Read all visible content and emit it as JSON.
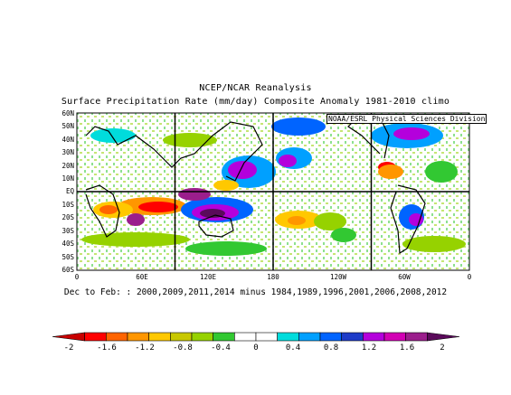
{
  "titles": {
    "line1": "NCEP/NCAR Reanalysis",
    "line2": "Surface Precipitation Rate (mm/day) Composite Anomaly 1981-2010 climo"
  },
  "credit": "NOAA/ESRL Physical Sciences Division",
  "footer": "Dec to Feb: : 2000,2009,2011,2014 minus 1984,1989,1996,2001,2006,2008,2012",
  "y_axis": [
    "60N",
    "50N",
    "40N",
    "30N",
    "20N",
    "10N",
    "EQ",
    "10S",
    "20S",
    "30S",
    "40S",
    "50S",
    "60S"
  ],
  "x_axis": [
    "0",
    "60E",
    "120E",
    "180",
    "120W",
    "60W",
    "0"
  ],
  "colorbar": {
    "labels": [
      "-2",
      "-1.6",
      "-1.2",
      "-0.8",
      "-0.4",
      "0",
      "0.4",
      "0.8",
      "1.2",
      "1.6",
      "2"
    ],
    "colors": [
      "#c80000",
      "#ff0000",
      "#ff6400",
      "#ff9600",
      "#ffc800",
      "#c8c800",
      "#96d200",
      "#32c832",
      "#ffffff",
      "#ffffff",
      "#00dcdc",
      "#00a0ff",
      "#0064ff",
      "#1e3cc8",
      "#b400dc",
      "#d200b4",
      "#9b1e8c",
      "#5a0a5a"
    ]
  }
}
